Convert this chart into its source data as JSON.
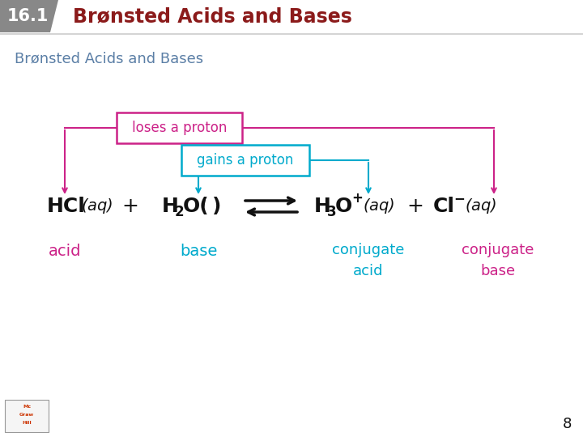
{
  "bg_color": "#ffffff",
  "header_number": "16.1",
  "header_number_bg": "#888888",
  "header_title": "Brønsted Acids and Bases",
  "header_title_color": "#8b1a1a",
  "subtitle": "Brønsted Acids and Bases",
  "subtitle_color": "#5b7fa6",
  "magenta": "#cc2288",
  "cyan": "#00aacc",
  "dark": "#111111",
  "loses_label": "loses a proton",
  "gains_label": "gains a proton",
  "acid_label": "acid",
  "base_label": "base",
  "conj_acid_label": "conjugate\nacid",
  "conj_base_label": "conjugate\nbase",
  "page_number": "8",
  "fig_w": 7.2,
  "fig_h": 5.4,
  "dpi": 100
}
